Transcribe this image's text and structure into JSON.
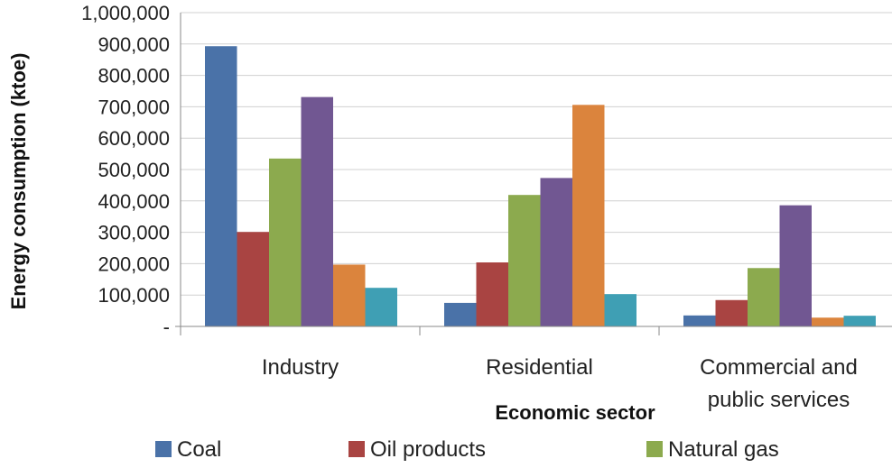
{
  "chart_data": {
    "type": "bar",
    "title": "",
    "xlabel": "Economic sector",
    "ylabel": "Energy consumption (ktoe)",
    "ylim": [
      0,
      1000000
    ],
    "yticks": [
      {
        "value": 0,
        "label": "-"
      },
      {
        "value": 100000,
        "label": "100,000"
      },
      {
        "value": 200000,
        "label": "200,000"
      },
      {
        "value": 300000,
        "label": "300,000"
      },
      {
        "value": 400000,
        "label": "400,000"
      },
      {
        "value": 500000,
        "label": "500,000"
      },
      {
        "value": 600000,
        "label": "600,000"
      },
      {
        "value": 700000,
        "label": "700,000"
      },
      {
        "value": 800000,
        "label": "800,000"
      },
      {
        "value": 900000,
        "label": "900,000"
      },
      {
        "value": 1000000,
        "label": "1,000,000"
      }
    ],
    "grid": true,
    "legend": "bottom",
    "categories": [
      [
        "Industry"
      ],
      [
        "Residential"
      ],
      [
        "Commercial and",
        "public services"
      ]
    ],
    "series": [
      {
        "name": "Coal",
        "color": "#4A72A8",
        "values": [
          893000,
          75000,
          35000
        ]
      },
      {
        "name": "Oil products",
        "color": "#A94442",
        "values": [
          301000,
          204000,
          84000
        ]
      },
      {
        "name": "Natural gas",
        "color": "#8CAA4E",
        "values": [
          535000,
          419000,
          186000
        ]
      },
      {
        "name": "",
        "color": "#715792",
        "values": [
          731000,
          473000,
          386000
        ]
      },
      {
        "name": "",
        "color": "#DB843D",
        "values": [
          197000,
          706000,
          28000
        ]
      },
      {
        "name": "",
        "color": "#3F9FB4",
        "values": [
          123000,
          103000,
          34000
        ]
      }
    ]
  }
}
